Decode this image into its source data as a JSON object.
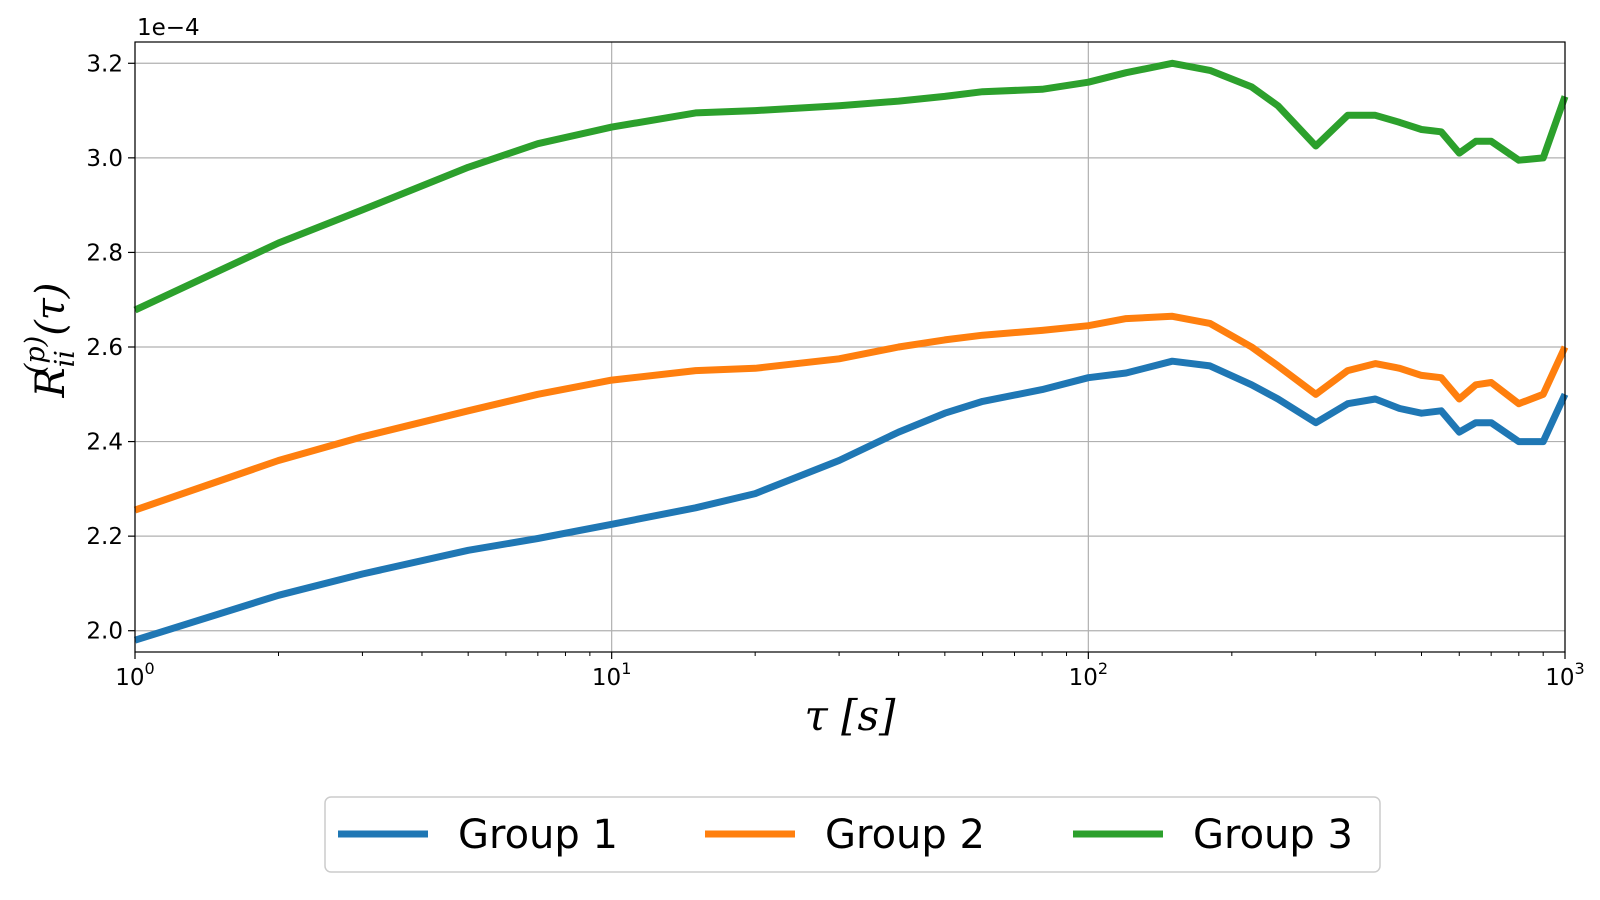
{
  "chart_data": {
    "type": "line",
    "xscale": "log",
    "xlim": [
      1,
      1000
    ],
    "ylim": [
      1.955,
      3.245
    ],
    "y_multiplier_label": "1e−4",
    "xlabel": "τ [s]",
    "ylabel": "R_ii^(p)(τ)",
    "grid": true,
    "legend_placement": "bottom-center",
    "x_ticks": [
      {
        "value": 1,
        "base": "10",
        "exp": "0"
      },
      {
        "value": 10,
        "base": "10",
        "exp": "1"
      },
      {
        "value": 100,
        "base": "10",
        "exp": "2"
      },
      {
        "value": 1000,
        "base": "10",
        "exp": "3"
      }
    ],
    "y_ticks": [
      "2.0",
      "2.2",
      "2.4",
      "2.6",
      "2.8",
      "3.0",
      "3.2"
    ],
    "x": [
      1,
      2,
      3,
      5,
      7,
      10,
      15,
      20,
      30,
      40,
      50,
      60,
      80,
      100,
      120,
      150,
      180,
      220,
      250,
      300,
      350,
      400,
      450,
      500,
      550,
      600,
      650,
      700,
      800,
      900,
      1000
    ],
    "series": [
      {
        "name": "Group 1",
        "color": "#1f77b4",
        "values": [
          1.98,
          2.075,
          2.12,
          2.17,
          2.195,
          2.225,
          2.26,
          2.29,
          2.36,
          2.42,
          2.46,
          2.485,
          2.51,
          2.535,
          2.545,
          2.57,
          2.56,
          2.52,
          2.49,
          2.44,
          2.48,
          2.49,
          2.47,
          2.46,
          2.465,
          2.42,
          2.44,
          2.44,
          2.4,
          2.4,
          2.5
        ]
      },
      {
        "name": "Group 2",
        "color": "#ff7f0e",
        "values": [
          2.255,
          2.36,
          2.41,
          2.465,
          2.5,
          2.53,
          2.55,
          2.555,
          2.575,
          2.6,
          2.615,
          2.625,
          2.635,
          2.645,
          2.66,
          2.665,
          2.65,
          2.6,
          2.56,
          2.5,
          2.55,
          2.565,
          2.555,
          2.54,
          2.535,
          2.49,
          2.52,
          2.525,
          2.48,
          2.5,
          2.6
        ]
      },
      {
        "name": "Group 3",
        "color": "#2ca02c",
        "values": [
          2.678,
          2.82,
          2.89,
          2.98,
          3.03,
          3.065,
          3.095,
          3.1,
          3.11,
          3.12,
          3.13,
          3.14,
          3.145,
          3.16,
          3.18,
          3.2,
          3.185,
          3.15,
          3.11,
          3.025,
          3.09,
          3.09,
          3.075,
          3.06,
          3.055,
          3.01,
          3.035,
          3.035,
          2.995,
          3.0,
          3.13
        ]
      }
    ]
  }
}
